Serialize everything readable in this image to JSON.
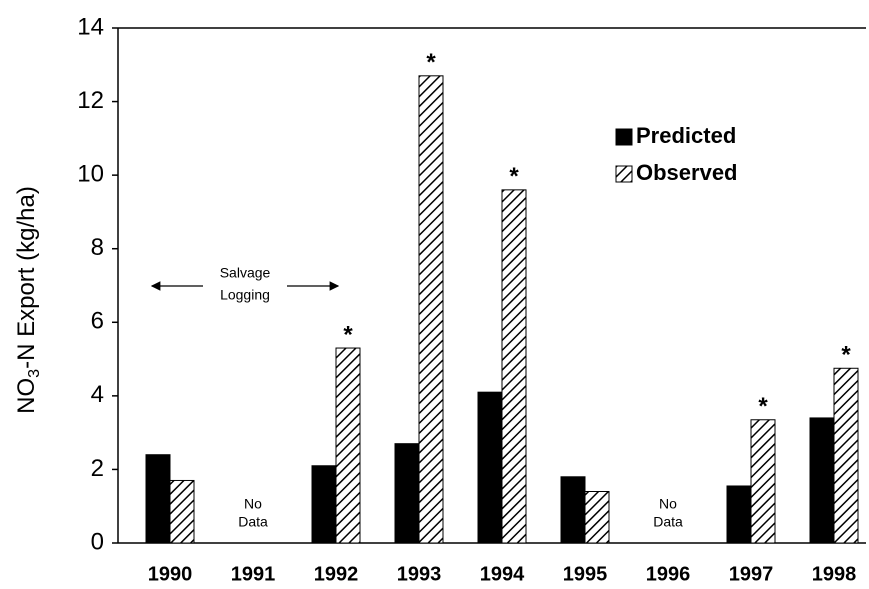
{
  "chart_data": {
    "type": "bar",
    "y_label": [
      "NO",
      "3",
      "-N Export (kg/ha)"
    ],
    "categories": [
      "1990",
      "1991",
      "1992",
      "1993",
      "1994",
      "1995",
      "1996",
      "1997",
      "1998"
    ],
    "series": [
      {
        "name": "Predicted",
        "color": "#000000",
        "fill": "solid",
        "values": [
          2.4,
          null,
          2.1,
          2.7,
          4.1,
          1.8,
          null,
          1.55,
          3.4
        ]
      },
      {
        "name": "Observed",
        "color": "#000000",
        "fill": "hatch",
        "values": [
          1.7,
          null,
          5.3,
          12.7,
          9.6,
          1.4,
          null,
          3.35,
          4.75
        ]
      }
    ],
    "ylim": [
      0,
      14
    ],
    "yticks": [
      0,
      2,
      4,
      6,
      8,
      10,
      12,
      14
    ],
    "grid": false,
    "legend": "upper right",
    "significance": {
      "text": "*",
      "categories": [
        2,
        3,
        4,
        7,
        8
      ]
    },
    "no_data": {
      "text": [
        "No",
        "Data"
      ],
      "categories": [
        1,
        6
      ]
    },
    "period": {
      "text": [
        "Salvage",
        "Logging"
      ],
      "from": 0,
      "to": 2
    }
  }
}
